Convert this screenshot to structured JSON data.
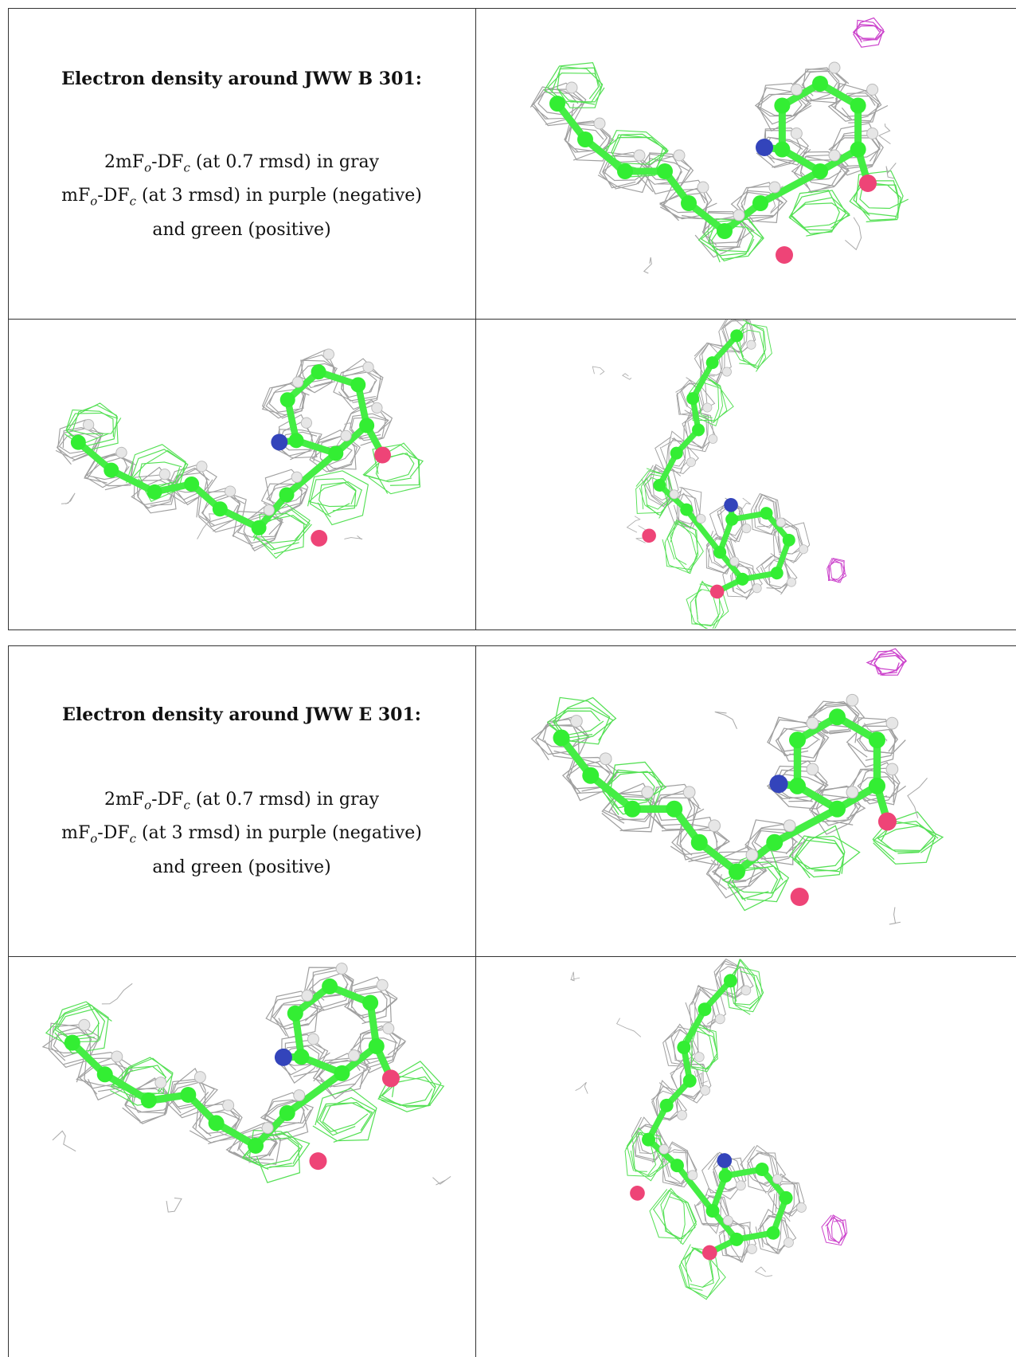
{
  "panels": [
    {
      "heading": "Electron density around JWW B 301:",
      "lines": [
        [
          "2mF",
          "o",
          "-DF",
          "c",
          " (at 0.7 rmsd) in gray"
        ],
        [
          "mF",
          "o",
          "-DF",
          "c",
          " (at 3 rmsd) in purple (negative)"
        ],
        [
          "and green (positive)"
        ]
      ]
    },
    {
      "heading": "Electron density around JWW E 301:",
      "lines": [
        [
          "2mF",
          "o",
          "-DF",
          "c",
          " (at 0.7 rmsd) in gray"
        ],
        [
          "mF",
          "o",
          "-DF",
          "c",
          " (at 3 rmsd) in purple (negative)"
        ],
        [
          "and green (positive)"
        ]
      ]
    }
  ]
}
